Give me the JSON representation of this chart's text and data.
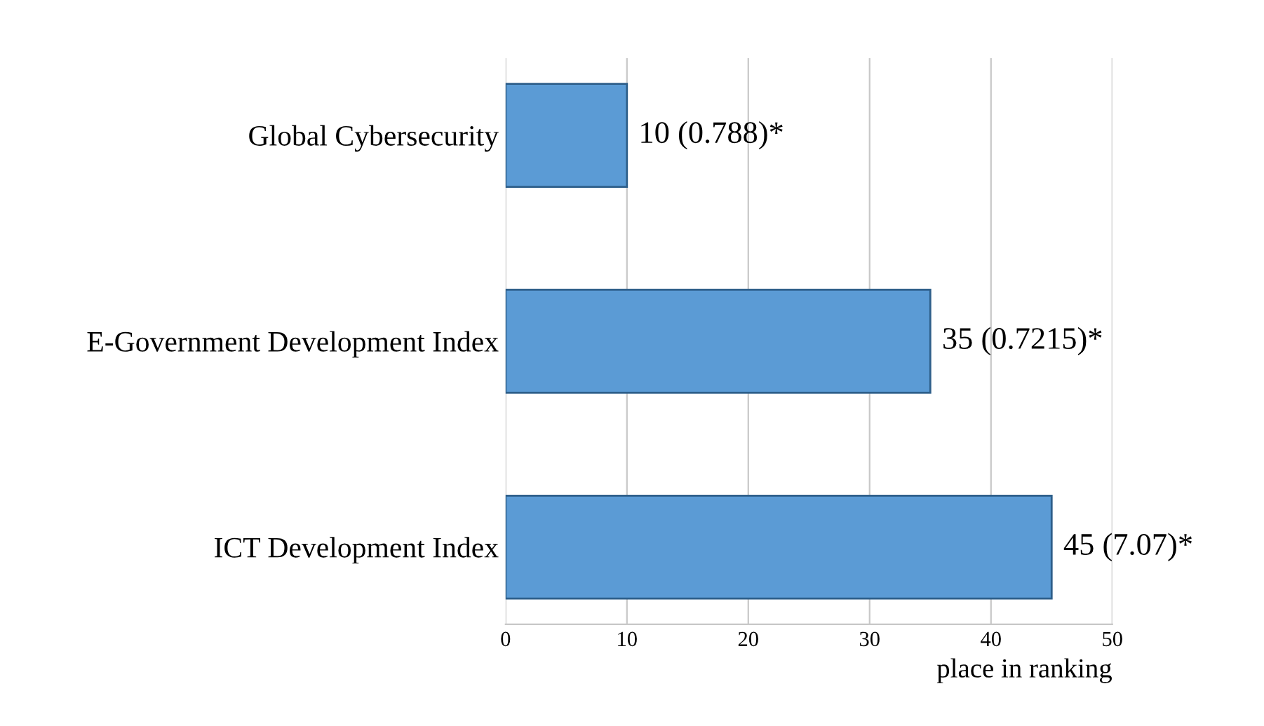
{
  "chart_data": {
    "type": "bar",
    "orientation": "horizontal",
    "categories": [
      "Global Cybersecurity",
      "E-Government Development Index",
      "ICT Development Index"
    ],
    "values": [
      10,
      35,
      45
    ],
    "color": "#5b9bd5",
    "value_labels": [
      "10 (0.788)*",
      "35 (0.7215)*",
      "45 (7.07)*"
    ],
    "xlabel": "place in ranking",
    "xlim": [
      0,
      50
    ],
    "xticks": [
      0,
      10,
      20,
      30,
      40,
      50
    ],
    "grid": "x",
    "legend": false
  }
}
